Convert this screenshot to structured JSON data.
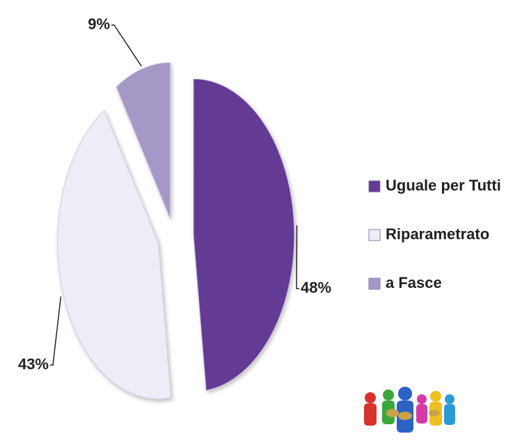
{
  "chart_data": {
    "type": "pie",
    "categories": [
      "Uguale per Tutti",
      "Riparametrato",
      "a Fasce"
    ],
    "values": [
      48,
      43,
      9
    ],
    "value_labels": [
      "48%",
      "43%",
      "9%"
    ],
    "colors": [
      "#643a94",
      "#efebf7",
      "#a597c6"
    ],
    "legend": "right"
  }
}
